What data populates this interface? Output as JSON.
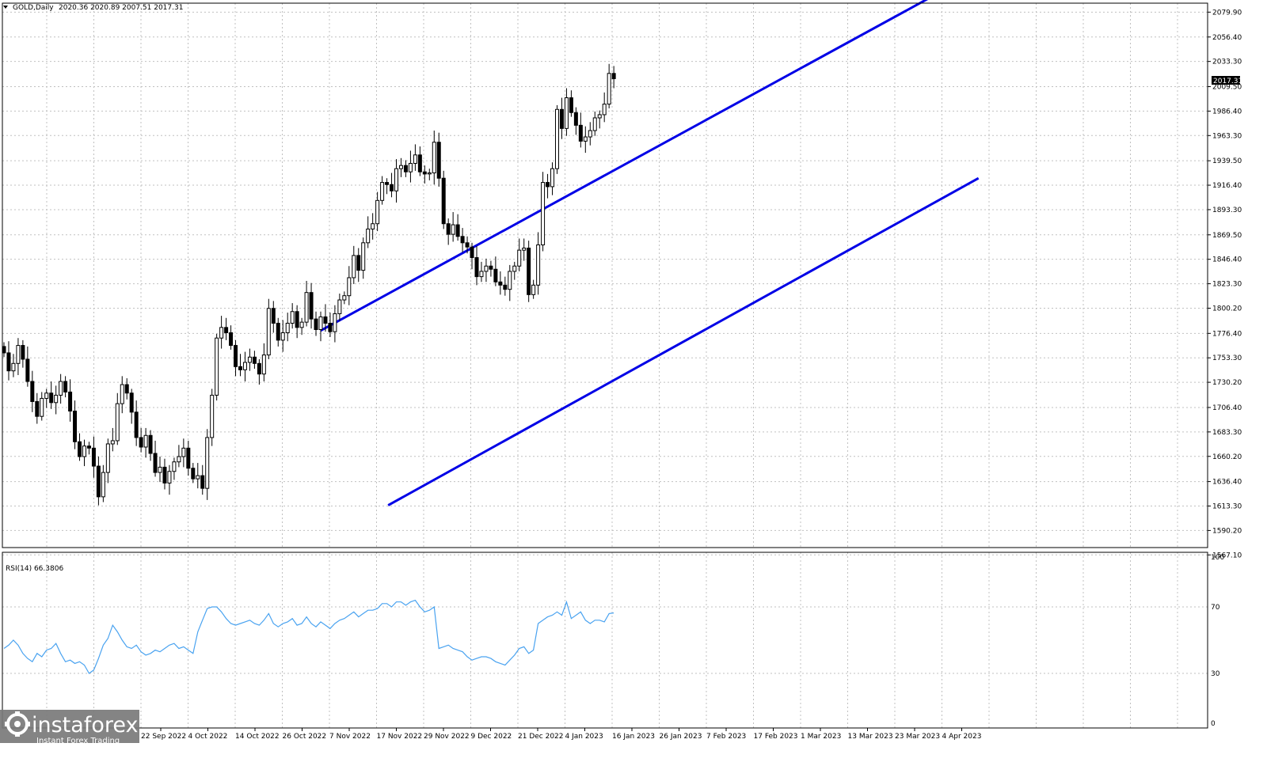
{
  "header": {
    "symbol": "GOLD,Daily",
    "ohlc": "2020.36 2020.89 2007.51 2017.31"
  },
  "price_axis": {
    "ticks": [
      "2079.90",
      "2056.40",
      "2033.30",
      "2009.50",
      "1986.40",
      "1963.30",
      "1939.50",
      "1916.40",
      "1893.30",
      "1869.50",
      "1846.40",
      "1823.30",
      "1800.20",
      "1776.40",
      "1753.30",
      "1730.20",
      "1706.40",
      "1683.30",
      "1660.20",
      "1636.40",
      "1613.30",
      "1590.20",
      "1567.10"
    ],
    "last_price_label": "2017.31",
    "last_price": 2017.31
  },
  "date_axis": {
    "labels": [
      "22 Sep 2022",
      "4 Oct 2022",
      "14 Oct 2022",
      "26 Oct 2022",
      "7 Nov 2022",
      "17 Nov 2022",
      "29 Nov 2022",
      "9 Dec 2022",
      "21 Dec 2022",
      "4 Jan 2023",
      "16 Jan 2023",
      "26 Jan 2023",
      "7 Feb 2023",
      "17 Feb 2023",
      "1 Mar 2023",
      "13 Mar 2023",
      "23 Mar 2023",
      "4 Apr 2023"
    ]
  },
  "rsi": {
    "label": "RSI(14) 66.3806",
    "ticks": [
      "100",
      "70",
      "30",
      "0"
    ]
  },
  "logo": {
    "name": "instaforex",
    "tagline": "Instant Forex Trading"
  },
  "colors": {
    "background": "#ffffff",
    "grid": "#c0c0c0",
    "candle": "#000000",
    "channel": "#0000e6",
    "rsi_line": "#4aa3f0",
    "logo_bg": "#7a7a7a"
  },
  "chart_data": [
    {
      "type": "candlestick",
      "title": "GOLD,Daily",
      "ylim": [
        1567.1,
        2093
      ],
      "x_categories": [
        "22 Sep 2022",
        "4 Oct 2022",
        "14 Oct 2022",
        "26 Oct 2022",
        "7 Nov 2022",
        "17 Nov 2022",
        "29 Nov 2022",
        "9 Dec 2022",
        "21 Dec 2022",
        "4 Jan 2023",
        "16 Jan 2023",
        "26 Jan 2023",
        "7 Feb 2023",
        "17 Feb 2023",
        "1 Mar 2023",
        "13 Mar 2023",
        "23 Mar 2023",
        "4 Apr 2023"
      ],
      "close_series": [
        1758,
        1741,
        1748,
        1765,
        1752,
        1731,
        1712,
        1698,
        1715,
        1720,
        1711,
        1718,
        1731,
        1721,
        1703,
        1674,
        1660,
        1670,
        1668,
        1651,
        1622,
        1645,
        1672,
        1675,
        1710,
        1728,
        1720,
        1702,
        1678,
        1669,
        1680,
        1663,
        1645,
        1650,
        1635,
        1646,
        1655,
        1660,
        1668,
        1649,
        1639,
        1642,
        1630,
        1678,
        1718,
        1772,
        1782,
        1777,
        1765,
        1745,
        1742,
        1749,
        1754,
        1748,
        1738,
        1756,
        1800,
        1786,
        1770,
        1777,
        1786,
        1797,
        1782,
        1787,
        1815,
        1790,
        1780,
        1792,
        1786,
        1778,
        1795,
        1808,
        1812,
        1829,
        1850,
        1836,
        1862,
        1875,
        1880,
        1902,
        1919,
        1917,
        1911,
        1932,
        1935,
        1929,
        1937,
        1945,
        1929,
        1927,
        1928,
        1957,
        1923,
        1880,
        1870,
        1879,
        1868,
        1862,
        1858,
        1848,
        1830,
        1835,
        1840,
        1837,
        1825,
        1822,
        1818,
        1835,
        1840,
        1855,
        1857,
        1813,
        1822,
        1860,
        1919,
        1915,
        1932,
        1988,
        1970,
        1999,
        1985,
        1973,
        1958,
        1962,
        1968,
        1980,
        1983,
        1993,
        2022,
        2017
      ],
      "channel_lines": [
        {
          "points": [
            [
              "2022-10-14",
              1779
            ],
            [
              "2023-04-14",
              2096
            ]
          ]
        },
        {
          "points": [
            [
              "2022-11-03",
              1614
            ],
            [
              "2023-04-27",
              1923
            ]
          ]
        }
      ]
    },
    {
      "type": "line",
      "title": "RSI(14) 66.3806",
      "ylim": [
        0,
        100
      ],
      "series": [
        {
          "values": [
            45,
            47,
            50,
            47,
            42,
            39,
            37,
            42,
            40,
            44,
            45,
            48,
            42,
            37,
            38,
            36,
            37,
            35,
            30,
            32,
            39,
            47,
            51,
            59,
            55,
            50,
            46,
            45,
            47,
            43,
            41,
            42,
            44,
            43,
            45,
            47,
            48,
            45,
            46,
            44,
            42,
            55,
            62,
            69,
            70,
            70,
            67,
            63,
            60,
            59,
            60,
            61,
            62,
            60,
            59,
            62,
            66,
            60,
            58,
            60,
            61,
            63,
            59,
            60,
            64,
            60,
            58,
            61,
            59,
            57,
            60,
            62,
            63,
            65,
            67,
            64,
            66,
            68,
            68,
            69,
            72,
            72,
            70,
            73,
            73,
            71,
            73,
            74,
            70,
            67,
            68,
            70,
            45,
            46,
            47,
            45,
            44,
            43,
            40,
            38,
            39,
            40,
            40,
            39,
            37,
            36,
            35,
            38,
            41,
            45,
            46,
            42,
            44,
            60,
            62,
            64,
            65,
            67,
            65,
            73,
            63,
            65,
            67,
            62,
            60,
            62,
            62,
            61,
            66,
            66.38
          ]
        }
      ]
    }
  ]
}
